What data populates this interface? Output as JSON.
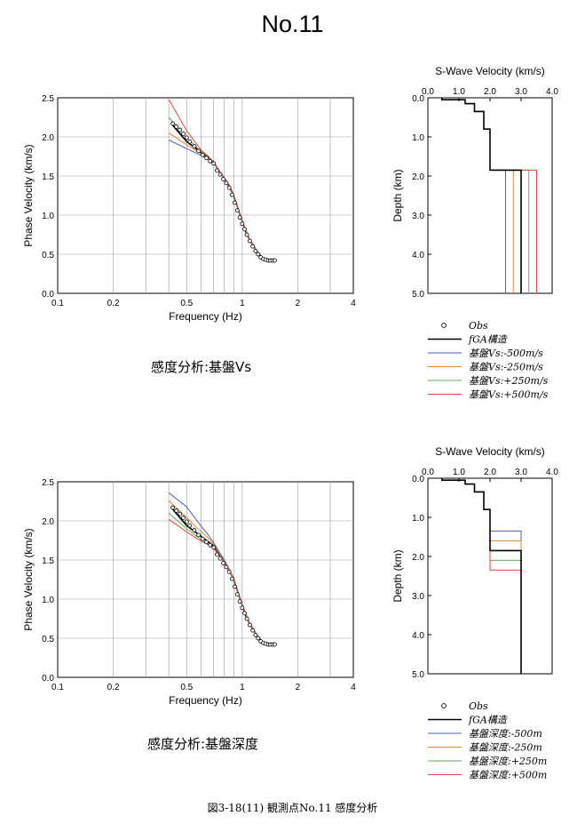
{
  "page": {
    "title": "No.11",
    "figure_caption": "図3-18(11)  観測点No.11  感度分析",
    "captions": [
      "感度分析:基盤Vs",
      "感度分析:基盤深度"
    ]
  },
  "colors": {
    "obs": "#000000",
    "fga": "#000000",
    "minus500": "#4a5cb4",
    "minus250": "#e0892c",
    "plus250": "#5cae58",
    "plus500": "#e0463c",
    "grid": "#9a9a9a"
  },
  "chart_data": [
    {
      "type": "scatter+line",
      "xlabel": "Frequency (Hz)",
      "ylabel": "Phase Velocity (km/s)",
      "xscale": "log",
      "xlim": [
        0.1,
        4
      ],
      "ylim": [
        0,
        2.5
      ],
      "xticks": [
        0.1,
        0.2,
        0.5,
        1,
        2,
        4
      ],
      "xtick_labels": [
        "0.1",
        "0.2",
        "0.5",
        "1",
        "2",
        "4"
      ],
      "yticks": [
        0,
        0.5,
        1.0,
        1.5,
        2.0,
        2.5
      ],
      "ytick_labels": [
        "0.0",
        "0.5",
        "1.0",
        "1.5",
        "2.0",
        "2.5"
      ],
      "grid": true,
      "obs": {
        "x": [
          0.42,
          0.44,
          0.46,
          0.48,
          0.5,
          0.52,
          0.55,
          0.58,
          0.61,
          0.64,
          0.67,
          0.7,
          0.73,
          0.76,
          0.79,
          0.82,
          0.85,
          0.88,
          0.91,
          0.94,
          0.97,
          1.0,
          1.03,
          1.06,
          1.1,
          1.14,
          1.18,
          1.22,
          1.26,
          1.3,
          1.34,
          1.38,
          1.42,
          1.46,
          1.5
        ],
        "y": [
          2.17,
          2.13,
          2.09,
          2.04,
          1.99,
          1.94,
          1.88,
          1.82,
          1.77,
          1.73,
          1.69,
          1.66,
          1.57,
          1.52,
          1.46,
          1.41,
          1.35,
          1.26,
          1.16,
          1.06,
          0.97,
          0.89,
          0.82,
          0.75,
          0.67,
          0.6,
          0.54,
          0.5,
          0.46,
          0.44,
          0.43,
          0.42,
          0.42,
          0.42,
          0.42
        ]
      },
      "series": [
        {
          "key": "fga",
          "x": [
            0.42,
            0.5,
            0.6,
            0.7,
            0.75,
            0.8,
            0.85,
            0.9,
            0.95,
            1.0,
            1.05,
            1.1,
            1.2,
            1.3,
            1.4,
            1.5
          ],
          "y": [
            2.15,
            1.94,
            1.8,
            1.68,
            1.56,
            1.47,
            1.37,
            1.25,
            1.08,
            0.92,
            0.78,
            0.68,
            0.54,
            0.44,
            0.42,
            0.42
          ]
        },
        {
          "key": "minus500",
          "x": [
            0.4,
            0.5,
            0.6,
            0.65,
            0.7,
            0.8,
            0.9,
            1.0,
            1.1,
            1.2,
            1.3,
            1.4,
            1.5
          ],
          "y": [
            1.96,
            1.85,
            1.76,
            1.72,
            1.66,
            1.46,
            1.25,
            0.92,
            0.68,
            0.54,
            0.44,
            0.41,
            0.41
          ]
        },
        {
          "key": "minus250",
          "x": [
            0.4,
            0.5,
            0.6,
            0.65,
            0.7,
            0.8,
            0.9,
            1.0,
            1.1,
            1.2,
            1.3,
            1.4,
            1.5
          ],
          "y": [
            2.05,
            1.9,
            1.78,
            1.73,
            1.67,
            1.46,
            1.25,
            0.92,
            0.68,
            0.54,
            0.44,
            0.41,
            0.41
          ]
        },
        {
          "key": "plus250",
          "x": [
            0.4,
            0.5,
            0.6,
            0.65,
            0.7,
            0.8,
            0.9,
            1.0,
            1.1,
            1.2,
            1.3,
            1.4,
            1.5
          ],
          "y": [
            2.25,
            1.99,
            1.81,
            1.75,
            1.68,
            1.47,
            1.25,
            0.92,
            0.68,
            0.54,
            0.44,
            0.42,
            0.42
          ]
        },
        {
          "key": "plus500",
          "x": [
            0.4,
            0.5,
            0.6,
            0.65,
            0.7,
            0.8,
            0.9,
            1.0,
            1.1,
            1.2,
            1.3,
            1.4,
            1.5
          ],
          "y": [
            2.48,
            2.08,
            1.83,
            1.76,
            1.68,
            1.47,
            1.25,
            0.92,
            0.68,
            0.54,
            0.44,
            0.42,
            0.42
          ]
        }
      ]
    },
    {
      "type": "line",
      "title": "S-Wave Velocity (km/s)",
      "ylabel": "Depth (km)",
      "xlim": [
        0,
        4
      ],
      "ylim": [
        0,
        5
      ],
      "xticks": [
        0,
        1,
        2,
        3,
        4
      ],
      "xtick_labels": [
        "0.0",
        "1.0",
        "2.0",
        "3.0",
        "4.0"
      ],
      "yticks": [
        0,
        1,
        2,
        3,
        4,
        5
      ],
      "ytick_labels": [
        "0.0",
        "1.0",
        "2.0",
        "3.0",
        "4.0",
        "5.0"
      ],
      "y_inverted": true,
      "base_profile": {
        "vs": [
          0.45,
          0.45,
          1.2,
          1.2,
          1.5,
          1.5,
          1.8,
          1.8
        ],
        "depth": [
          0,
          0.05,
          0.05,
          0.15,
          0.15,
          0.35,
          0.35,
          0.8
        ]
      },
      "bedrock_top": [
        {
          "vs": 1.8,
          "depth": 0.8
        },
        {
          "vs": 2.0,
          "depth": 0.8
        },
        {
          "vs": 2.0,
          "depth": 1.85
        }
      ],
      "series": [
        {
          "key": "fga",
          "bedrock_vs": 3.0
        },
        {
          "key": "minus500",
          "bedrock_vs": 2.5
        },
        {
          "key": "minus250",
          "bedrock_vs": 2.75
        },
        {
          "key": "plus250",
          "bedrock_vs": 3.25
        },
        {
          "key": "plus500",
          "bedrock_vs": 3.5
        }
      ],
      "legend": [
        {
          "key": "obs",
          "label": "Obs"
        },
        {
          "key": "fga",
          "label": "fGA構造"
        },
        {
          "key": "minus500",
          "label": "基盤Vs:-500m/s"
        },
        {
          "key": "minus250",
          "label": "基盤Vs:-250m/s"
        },
        {
          "key": "plus250",
          "label": "基盤Vs:+250m/s"
        },
        {
          "key": "plus500",
          "label": "基盤Vs:+500m/s"
        }
      ]
    },
    {
      "type": "scatter+line",
      "xlabel": "Frequency (Hz)",
      "ylabel": "Phase Velocity (km/s)",
      "xscale": "log",
      "xlim": [
        0.1,
        4
      ],
      "ylim": [
        0,
        2.5
      ],
      "xticks": [
        0.1,
        0.2,
        0.5,
        1,
        2,
        4
      ],
      "xtick_labels": [
        "0.1",
        "0.2",
        "0.5",
        "1",
        "2",
        "4"
      ],
      "yticks": [
        0,
        0.5,
        1.0,
        1.5,
        2.0,
        2.5
      ],
      "ytick_labels": [
        "0.0",
        "0.5",
        "1.0",
        "1.5",
        "2.0",
        "2.5"
      ],
      "grid": true,
      "obs": {
        "x": [
          0.42,
          0.44,
          0.46,
          0.48,
          0.5,
          0.52,
          0.55,
          0.58,
          0.61,
          0.64,
          0.67,
          0.7,
          0.73,
          0.76,
          0.79,
          0.82,
          0.85,
          0.88,
          0.91,
          0.94,
          0.97,
          1.0,
          1.03,
          1.06,
          1.1,
          1.14,
          1.18,
          1.22,
          1.26,
          1.3,
          1.34,
          1.38,
          1.42,
          1.46,
          1.5
        ],
        "y": [
          2.17,
          2.13,
          2.09,
          2.04,
          1.99,
          1.94,
          1.88,
          1.82,
          1.77,
          1.73,
          1.69,
          1.66,
          1.57,
          1.52,
          1.46,
          1.41,
          1.35,
          1.26,
          1.16,
          1.06,
          0.97,
          0.89,
          0.82,
          0.75,
          0.67,
          0.6,
          0.54,
          0.5,
          0.46,
          0.44,
          0.43,
          0.42,
          0.42,
          0.42,
          0.42
        ]
      },
      "series": [
        {
          "key": "fga",
          "x": [
            0.42,
            0.5,
            0.6,
            0.7,
            0.75,
            0.8,
            0.85,
            0.9,
            0.95,
            1.0,
            1.05,
            1.1,
            1.2,
            1.3,
            1.4,
            1.5
          ],
          "y": [
            2.15,
            1.94,
            1.8,
            1.68,
            1.56,
            1.47,
            1.37,
            1.25,
            1.08,
            0.92,
            0.78,
            0.68,
            0.54,
            0.44,
            0.42,
            0.42
          ]
        },
        {
          "key": "minus500",
          "x": [
            0.4,
            0.5,
            0.6,
            0.65,
            0.7,
            0.8,
            0.9,
            1.0,
            1.1,
            1.2,
            1.3,
            1.4,
            1.5
          ],
          "y": [
            2.36,
            2.18,
            1.93,
            1.83,
            1.72,
            1.5,
            1.27,
            0.93,
            0.68,
            0.54,
            0.44,
            0.41,
            0.41
          ]
        },
        {
          "key": "minus250",
          "x": [
            0.4,
            0.5,
            0.6,
            0.65,
            0.7,
            0.8,
            0.9,
            1.0,
            1.1,
            1.2,
            1.3,
            1.4,
            1.5
          ],
          "y": [
            2.26,
            2.04,
            1.86,
            1.79,
            1.7,
            1.48,
            1.26,
            0.92,
            0.68,
            0.54,
            0.44,
            0.41,
            0.41
          ]
        },
        {
          "key": "plus250",
          "x": [
            0.4,
            0.5,
            0.6,
            0.65,
            0.7,
            0.8,
            0.9,
            1.0,
            1.1,
            1.2,
            1.3,
            1.4,
            1.5
          ],
          "y": [
            2.1,
            1.9,
            1.76,
            1.71,
            1.66,
            1.46,
            1.25,
            0.92,
            0.68,
            0.54,
            0.44,
            0.42,
            0.42
          ]
        },
        {
          "key": "plus500",
          "x": [
            0.4,
            0.5,
            0.6,
            0.65,
            0.7,
            0.8,
            0.9,
            1.0,
            1.1,
            1.2,
            1.3,
            1.4,
            1.5
          ],
          "y": [
            2.02,
            1.86,
            1.74,
            1.7,
            1.65,
            1.46,
            1.25,
            0.92,
            0.68,
            0.54,
            0.44,
            0.42,
            0.42
          ]
        }
      ]
    },
    {
      "type": "line",
      "title": "S-Wave Velocity (km/s)",
      "ylabel": "Depth (km)",
      "xlim": [
        0,
        4
      ],
      "ylim": [
        0,
        5
      ],
      "xticks": [
        0,
        1,
        2,
        3,
        4
      ],
      "xtick_labels": [
        "0.0",
        "1.0",
        "2.0",
        "3.0",
        "4.0"
      ],
      "yticks": [
        0,
        1,
        2,
        3,
        4,
        5
      ],
      "ytick_labels": [
        "0.0",
        "1.0",
        "2.0",
        "3.0",
        "4.0",
        "5.0"
      ],
      "y_inverted": true,
      "base_profile": {
        "vs": [
          0.45,
          0.45,
          1.2,
          1.2,
          1.5,
          1.5,
          1.8,
          1.8
        ],
        "depth": [
          0,
          0.05,
          0.05,
          0.15,
          0.15,
          0.35,
          0.35,
          0.8
        ]
      },
      "shallow_vs": 1.8,
      "upper_vs": 2.0,
      "bedrock_vs": 3.0,
      "series": [
        {
          "key": "fga",
          "bedrock_depth": 1.85
        },
        {
          "key": "minus500",
          "bedrock_depth": 1.35
        },
        {
          "key": "minus250",
          "bedrock_depth": 1.6
        },
        {
          "key": "plus250",
          "bedrock_depth": 2.1
        },
        {
          "key": "plus500",
          "bedrock_depth": 2.35
        }
      ],
      "legend": [
        {
          "key": "obs",
          "label": "Obs"
        },
        {
          "key": "fga",
          "label": "fGA構造"
        },
        {
          "key": "minus500",
          "label": "基盤深度:-500m"
        },
        {
          "key": "minus250",
          "label": "基盤深度:-250m"
        },
        {
          "key": "plus250",
          "label": "基盤深度:+250m"
        },
        {
          "key": "plus500",
          "label": "基盤深度:+500m"
        }
      ]
    }
  ]
}
